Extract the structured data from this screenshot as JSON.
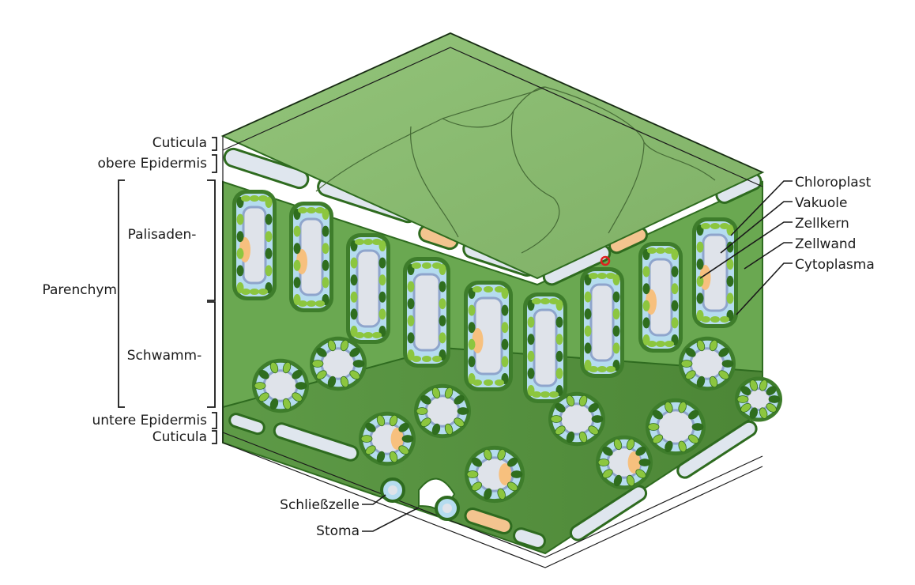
{
  "labels": {
    "cuticula_top": "Cuticula",
    "obere_epidermis": "obere Epidermis",
    "palisaden": "Palisaden-",
    "parenchym": "Parenchym",
    "schwamm": "Schwamm-",
    "untere_epidermis": "untere Epidermis",
    "cuticula_bottom": "Cuticula",
    "schliesszelle": "Schließzelle",
    "stoma": "Stoma",
    "chloroplast": "Chloroplast",
    "vakuole": "Vakuole",
    "zellkern": "Zellkern",
    "zellwand": "Zellwand",
    "cytoplasma": "Cytoplasma"
  },
  "colors": {
    "leaf_surface": "#8fbf74",
    "leaf_dark": "#4f8f3a",
    "cell_wall": "#2e6b1f",
    "cytoplasm": "#b5dcef",
    "vacuole": "#dfe3ea",
    "vacuole_shadow": "#8fa5cc",
    "chloroplast": "#8cc63f",
    "chloroplast_dark": "#2f6e1e",
    "nucleus": "#f7c07e",
    "epidermis": "#dfe6ee"
  }
}
